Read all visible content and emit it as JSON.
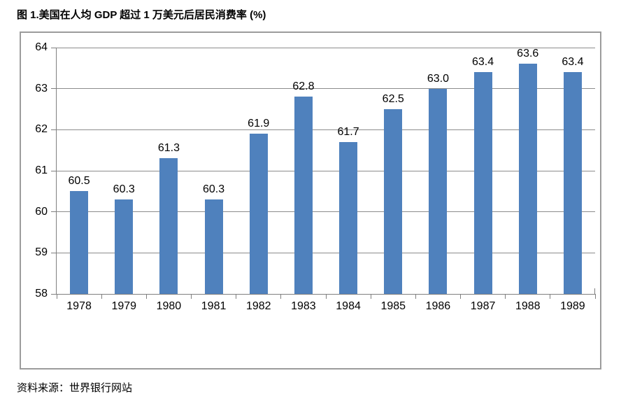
{
  "title": "图 1.美国在人均 GDP 超过 1 万美元后居民消费率 (%)",
  "source": "资料来源：世界银行网站",
  "colors": {
    "bar": "#4F81BD",
    "gridline": "#8c8c8c",
    "axis": "#7f7f7f",
    "frame_border": "#9c9c9c",
    "text": "#000000",
    "background": "#ffffff"
  },
  "chart_data": {
    "type": "bar",
    "title": "图 1.美国在人均 GDP 超过 1 万美元后居民消费率 (%)",
    "categories": [
      "1978",
      "1979",
      "1980",
      "1981",
      "1982",
      "1983",
      "1984",
      "1985",
      "1986",
      "1987",
      "1988",
      "1989"
    ],
    "values": [
      60.5,
      60.3,
      61.3,
      60.3,
      61.9,
      62.8,
      61.7,
      62.5,
      63.0,
      63.4,
      63.6,
      63.4
    ],
    "value_labels": [
      "60.5",
      "60.3",
      "61.3",
      "60.3",
      "61.9",
      "62.8",
      "61.7",
      "62.5",
      "63.0",
      "63.4",
      "63.6",
      "63.4"
    ],
    "xlabel": "",
    "ylabel": "",
    "ylim": [
      58,
      64
    ],
    "yticks": [
      58,
      59,
      60,
      61,
      62,
      63,
      64
    ],
    "grid": true,
    "legend": "none"
  }
}
